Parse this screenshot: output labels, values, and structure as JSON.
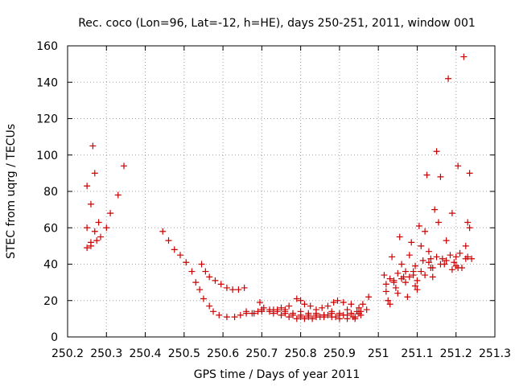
{
  "chart_data": {
    "type": "scatter",
    "title": "Rec. coco (Lon=96, Lat=-12, h=HE), days 250-251, 2011, window 001",
    "xlabel": "GPS time / Days of year 2011",
    "ylabel": "STEC from uqrg / TECUs",
    "xlim": [
      250.2,
      251.3
    ],
    "ylim": [
      0,
      160
    ],
    "x_ticks": [
      250.2,
      250.3,
      250.4,
      250.5,
      250.6,
      250.7,
      250.8,
      250.9,
      251,
      251.1,
      251.2,
      251.3
    ],
    "x_tick_labels": [
      "250.2",
      "250.3",
      "250.4",
      "250.5",
      "250.6",
      "250.7",
      "250.8",
      "250.9",
      "251",
      "251.1",
      "251.2",
      "251.3"
    ],
    "y_ticks": [
      0,
      20,
      40,
      60,
      80,
      100,
      120,
      140,
      160
    ],
    "y_tick_labels": [
      "0",
      "20",
      "40",
      "60",
      "80",
      "100",
      "120",
      "140",
      "160"
    ],
    "grid": true,
    "marker": "plus",
    "marker_color": "#cc0000",
    "series": [
      {
        "points": [
          [
            250.25,
            83
          ],
          [
            250.25,
            60
          ],
          [
            250.25,
            49
          ],
          [
            250.26,
            73
          ],
          [
            250.26,
            52
          ],
          [
            250.26,
            50
          ],
          [
            250.265,
            105
          ],
          [
            250.27,
            90
          ],
          [
            250.27,
            58
          ],
          [
            250.275,
            53
          ],
          [
            250.28,
            63
          ],
          [
            250.285,
            55
          ],
          [
            250.3,
            60
          ],
          [
            250.31,
            68
          ],
          [
            250.33,
            78
          ],
          [
            250.345,
            94
          ],
          [
            250.445,
            58
          ],
          [
            250.46,
            53
          ],
          [
            250.475,
            48
          ],
          [
            250.49,
            45
          ],
          [
            250.505,
            41
          ],
          [
            250.52,
            36
          ],
          [
            250.53,
            30
          ],
          [
            250.545,
            40
          ],
          [
            250.555,
            36
          ],
          [
            250.565,
            33
          ],
          [
            250.58,
            31
          ],
          [
            250.595,
            29
          ],
          [
            250.61,
            27
          ],
          [
            250.625,
            26
          ],
          [
            250.64,
            26
          ],
          [
            250.655,
            27
          ],
          [
            250.54,
            26
          ],
          [
            250.55,
            21
          ],
          [
            250.565,
            17
          ],
          [
            250.575,
            14
          ],
          [
            250.59,
            12
          ],
          [
            250.61,
            11
          ],
          [
            250.63,
            11
          ],
          [
            250.645,
            12
          ],
          [
            250.66,
            13
          ],
          [
            250.675,
            13
          ],
          [
            250.69,
            14
          ],
          [
            250.7,
            15
          ],
          [
            250.72,
            15
          ],
          [
            250.74,
            14
          ],
          [
            250.76,
            13
          ],
          [
            250.78,
            12
          ],
          [
            250.8,
            11
          ],
          [
            250.82,
            11
          ],
          [
            250.84,
            11
          ],
          [
            250.86,
            11
          ],
          [
            250.88,
            11
          ],
          [
            250.9,
            10
          ],
          [
            250.92,
            10
          ],
          [
            250.94,
            10
          ],
          [
            250.955,
            12
          ],
          [
            250.97,
            15
          ],
          [
            250.66,
            14
          ],
          [
            250.68,
            13
          ],
          [
            250.7,
            14
          ],
          [
            250.72,
            14
          ],
          [
            250.74,
            15
          ],
          [
            250.76,
            14
          ],
          [
            250.78,
            13
          ],
          [
            250.8,
            12
          ],
          [
            250.82,
            12
          ],
          [
            250.84,
            12
          ],
          [
            250.86,
            12
          ],
          [
            250.88,
            13
          ],
          [
            250.9,
            13
          ],
          [
            250.92,
            12
          ],
          [
            250.94,
            11
          ],
          [
            250.955,
            14
          ],
          [
            250.695,
            19
          ],
          [
            250.705,
            16
          ],
          [
            250.73,
            15
          ],
          [
            250.75,
            16
          ],
          [
            250.77,
            17
          ],
          [
            250.79,
            21
          ],
          [
            250.8,
            20
          ],
          [
            250.81,
            18
          ],
          [
            250.825,
            17
          ],
          [
            250.84,
            15
          ],
          [
            250.855,
            16
          ],
          [
            250.87,
            17
          ],
          [
            250.885,
            19
          ],
          [
            250.895,
            20
          ],
          [
            250.91,
            19
          ],
          [
            250.93,
            18
          ],
          [
            250.95,
            16
          ],
          [
            250.96,
            18
          ],
          [
            250.975,
            22
          ],
          [
            250.73,
            13
          ],
          [
            250.75,
            12
          ],
          [
            250.77,
            11
          ],
          [
            250.79,
            10
          ],
          [
            250.81,
            10
          ],
          [
            250.83,
            10
          ],
          [
            250.85,
            11
          ],
          [
            250.87,
            12
          ],
          [
            250.89,
            11
          ],
          [
            250.91,
            12
          ],
          [
            250.93,
            13
          ],
          [
            250.95,
            13
          ],
          [
            250.8,
            14
          ],
          [
            250.84,
            13
          ],
          [
            250.88,
            14
          ],
          [
            250.92,
            15
          ],
          [
            250.945,
            14
          ],
          [
            250.76,
            15
          ],
          [
            250.82,
            13
          ],
          [
            250.86,
            12
          ],
          [
            250.9,
            12
          ],
          [
            250.935,
            11
          ],
          [
            251.015,
            34
          ],
          [
            251.02,
            29
          ],
          [
            251.02,
            25
          ],
          [
            251.025,
            20
          ],
          [
            251.03,
            18
          ],
          [
            251.035,
            44
          ],
          [
            251.04,
            31
          ],
          [
            251.045,
            27
          ],
          [
            251.05,
            24
          ],
          [
            251.055,
            55
          ],
          [
            251.06,
            40
          ],
          [
            251.065,
            33
          ],
          [
            251.07,
            30
          ],
          [
            251.075,
            22
          ],
          [
            251.08,
            45
          ],
          [
            251.085,
            52
          ],
          [
            251.09,
            36
          ],
          [
            251.095,
            28
          ],
          [
            251.1,
            26
          ],
          [
            251.105,
            61
          ],
          [
            251.11,
            50
          ],
          [
            251.115,
            42
          ],
          [
            251.12,
            34
          ],
          [
            251.12,
            58
          ],
          [
            251.125,
            89
          ],
          [
            251.13,
            47
          ],
          [
            251.135,
            38
          ],
          [
            251.14,
            33
          ],
          [
            251.145,
            70
          ],
          [
            251.15,
            102
          ],
          [
            251.155,
            63
          ],
          [
            251.16,
            88
          ],
          [
            251.165,
            43
          ],
          [
            251.17,
            40
          ],
          [
            251.175,
            53
          ],
          [
            251.18,
            142
          ],
          [
            251.185,
            45
          ],
          [
            251.19,
            68
          ],
          [
            251.195,
            41
          ],
          [
            251.2,
            39
          ],
          [
            251.205,
            94
          ],
          [
            251.21,
            46
          ],
          [
            251.215,
            38
          ],
          [
            251.22,
            154
          ],
          [
            251.225,
            43
          ],
          [
            251.225,
            50
          ],
          [
            251.23,
            44
          ],
          [
            251.23,
            63
          ],
          [
            251.235,
            60
          ],
          [
            251.235,
            90
          ],
          [
            251.24,
            43
          ],
          [
            251.2,
            44
          ],
          [
            251.19,
            37
          ],
          [
            251.175,
            42
          ],
          [
            251.16,
            40
          ],
          [
            251.15,
            44
          ],
          [
            251.14,
            38
          ],
          [
            251.13,
            41
          ],
          [
            251.11,
            36
          ],
          [
            251.1,
            31
          ],
          [
            251.09,
            34
          ],
          [
            251.08,
            33
          ],
          [
            251.07,
            36
          ],
          [
            251.06,
            32
          ],
          [
            251.05,
            35
          ],
          [
            251.04,
            30
          ],
          [
            251.03,
            32
          ],
          [
            251.095,
            39
          ],
          [
            251.135,
            43
          ],
          [
            251.205,
            38
          ]
        ]
      }
    ]
  }
}
